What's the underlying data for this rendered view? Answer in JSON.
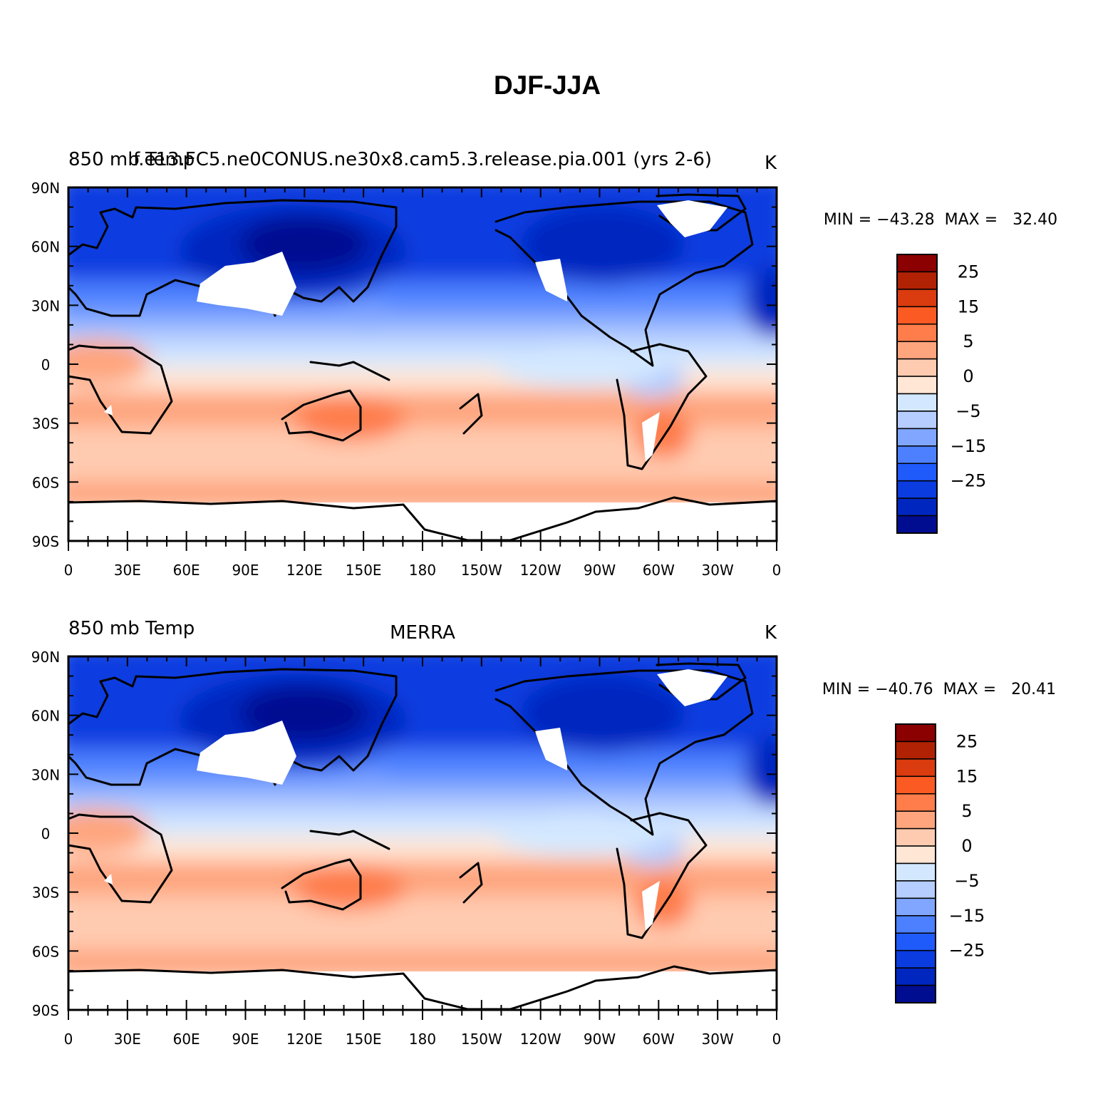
{
  "figure": {
    "title": "DJF-JJA"
  },
  "axes": {
    "lat_labels": [
      "90N",
      "60N",
      "30N",
      "0",
      "30S",
      "60S",
      "90S"
    ],
    "lon_labels": [
      "0",
      "30E",
      "60E",
      "90E",
      "120E",
      "150E",
      "180",
      "150W",
      "120W",
      "90W",
      "60W",
      "30W",
      "0"
    ]
  },
  "colorbar": {
    "colors": [
      "#8b0000",
      "#b02203",
      "#da3b0f",
      "#fb5a23",
      "#fe7d4b",
      "#fea57e",
      "#ffcbb0",
      "#ffe6d5",
      "#d3e8ff",
      "#b5cdff",
      "#80a6ff",
      "#4c80ff",
      "#1f5afb",
      "#0a3ce0",
      "#0026c0",
      "#000d91"
    ],
    "labels": [
      "25",
      "15",
      "5",
      "0",
      "−5",
      "−15",
      "−25"
    ]
  },
  "panels": [
    {
      "left_title": "850 mb Temp",
      "center_title": "f.e13.FC5.ne0CONUS.ne30x8.cam5.3.release.pia.001 (yrs 2-6)",
      "right_title": "K",
      "stats": "MIN = −43.28  MAX =   32.40"
    },
    {
      "left_title": "850 mb Temp",
      "center_title": "MERRA",
      "right_title": "K",
      "stats": "MIN = −40.76  MAX =   20.41"
    }
  ],
  "chart_data": [
    {
      "type": "map",
      "title": "850 mb Temp",
      "subtitle": "f.e13.FC5.ne0CONUS.ne30x8.cam5.3.release.pia.001 (yrs 2-6)",
      "units": "K",
      "min": -43.28,
      "max": 32.4,
      "contour_levels": [
        -35,
        -30,
        -25,
        -20,
        -15,
        -10,
        -5,
        0,
        5,
        10,
        15,
        20,
        25,
        30
      ],
      "projection": "cylindrical equidistant",
      "lat_range": [
        -90,
        90
      ],
      "lon_range": [
        0,
        360
      ]
    },
    {
      "type": "map",
      "title": "850 mb Temp",
      "subtitle": "MERRA",
      "units": "K",
      "min": -40.76,
      "max": 20.41,
      "contour_levels": [
        -35,
        -30,
        -25,
        -20,
        -15,
        -10,
        -5,
        0,
        5,
        10,
        15,
        20,
        25,
        30
      ],
      "projection": "cylindrical equidistant",
      "lat_range": [
        -90,
        90
      ],
      "lon_range": [
        0,
        360
      ]
    }
  ]
}
